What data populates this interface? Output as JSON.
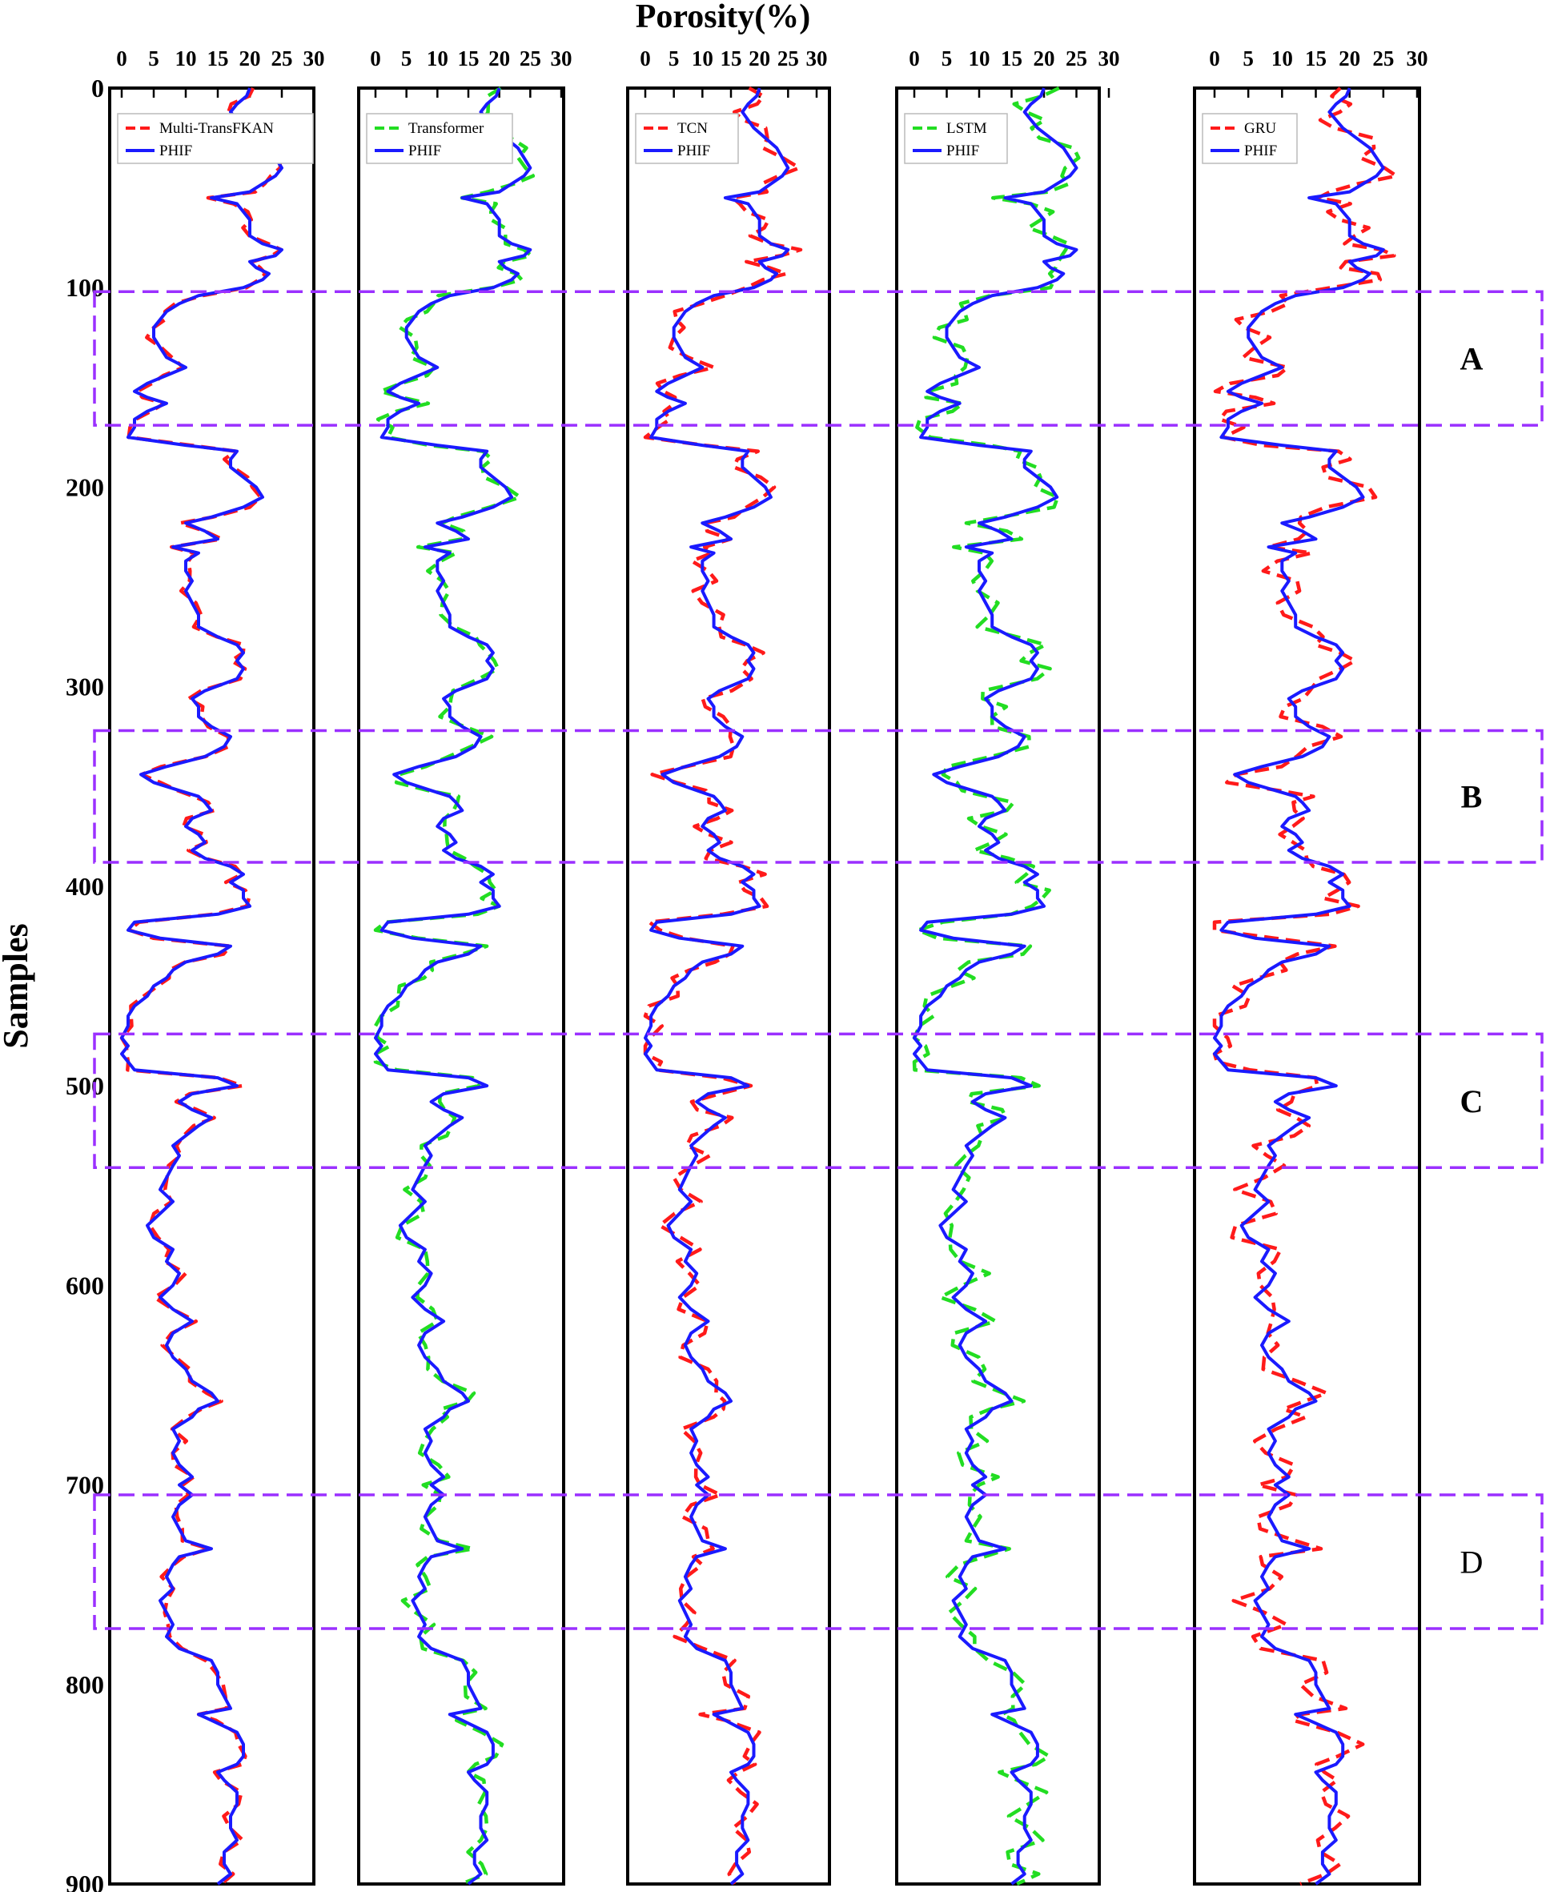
{
  "chart_data": {
    "type": "line",
    "title": "Porosity(%)",
    "ylabel": "Samples",
    "xlim": [
      0,
      30
    ],
    "ylim": [
      0,
      900
    ],
    "y_inverted": true,
    "x_ticks": [
      "0",
      "5",
      "10",
      "15",
      "20",
      "25",
      "30"
    ],
    "y_ticks": [
      "0",
      "100",
      "200",
      "300",
      "400",
      "500",
      "600",
      "700",
      "800",
      "900"
    ],
    "grid": false,
    "colors": {
      "reference": "#1a1aff",
      "red_prediction": "#ff1a1a",
      "green_prediction": "#22dd22",
      "zone_box": "#9b30ff"
    },
    "zones": [
      {
        "label": "A",
        "y_range": [
          102,
          169
        ],
        "bold": true
      },
      {
        "label": "B",
        "y_range": [
          322,
          388
        ],
        "bold": true
      },
      {
        "label": "C",
        "y_range": [
          474,
          541
        ],
        "bold": true
      },
      {
        "label": "D",
        "y_range": [
          705,
          772
        ],
        "bold": false
      }
    ],
    "reference_series": {
      "name": "PHIF",
      "points": [
        [
          0,
          20
        ],
        [
          4,
          19.5
        ],
        [
          8,
          18
        ],
        [
          12,
          17
        ],
        [
          16,
          18
        ],
        [
          20,
          19
        ],
        [
          25,
          21
        ],
        [
          30,
          23
        ],
        [
          35,
          24
        ],
        [
          40,
          25
        ],
        [
          44,
          24
        ],
        [
          48,
          22
        ],
        [
          52,
          20
        ],
        [
          55,
          14
        ],
        [
          58,
          18
        ],
        [
          62,
          19
        ],
        [
          66,
          20
        ],
        [
          70,
          20
        ],
        [
          74,
          20
        ],
        [
          78,
          22
        ],
        [
          81,
          25
        ],
        [
          84,
          24
        ],
        [
          87,
          20
        ],
        [
          90,
          21
        ],
        [
          93,
          23
        ],
        [
          96,
          22
        ],
        [
          100,
          19
        ],
        [
          104,
          12
        ],
        [
          108,
          9
        ],
        [
          112,
          7
        ],
        [
          116,
          6
        ],
        [
          120,
          5
        ],
        [
          125,
          5
        ],
        [
          130,
          6
        ],
        [
          135,
          7
        ],
        [
          140,
          10
        ],
        [
          144,
          7
        ],
        [
          148,
          4
        ],
        [
          152,
          2
        ],
        [
          155,
          4
        ],
        [
          158,
          7
        ],
        [
          162,
          4
        ],
        [
          166,
          2
        ],
        [
          170,
          2
        ],
        [
          175,
          1
        ],
        [
          179,
          10
        ],
        [
          182,
          18
        ],
        [
          186,
          17
        ],
        [
          190,
          17
        ],
        [
          195,
          19
        ],
        [
          200,
          21
        ],
        [
          205,
          22
        ],
        [
          210,
          19
        ],
        [
          215,
          14
        ],
        [
          218,
          10
        ],
        [
          222,
          13
        ],
        [
          226,
          15
        ],
        [
          230,
          8
        ],
        [
          233,
          12
        ],
        [
          237,
          10
        ],
        [
          242,
          10
        ],
        [
          247,
          11
        ],
        [
          252,
          10
        ],
        [
          258,
          11
        ],
        [
          264,
          12
        ],
        [
          270,
          12
        ],
        [
          275,
          15
        ],
        [
          279,
          18
        ],
        [
          283,
          19
        ],
        [
          287,
          18
        ],
        [
          291,
          19
        ],
        [
          296,
          18
        ],
        [
          302,
          13
        ],
        [
          306,
          11
        ],
        [
          310,
          12
        ],
        [
          315,
          12
        ],
        [
          320,
          14
        ],
        [
          325,
          17
        ],
        [
          330,
          16
        ],
        [
          335,
          13
        ],
        [
          340,
          7
        ],
        [
          344,
          3
        ],
        [
          348,
          5
        ],
        [
          352,
          9
        ],
        [
          355,
          12
        ],
        [
          358,
          13
        ],
        [
          362,
          14
        ],
        [
          366,
          11
        ],
        [
          370,
          10
        ],
        [
          374,
          12
        ],
        [
          378,
          13
        ],
        [
          382,
          11
        ],
        [
          386,
          13
        ],
        [
          390,
          17
        ],
        [
          394,
          19
        ],
        [
          398,
          17
        ],
        [
          402,
          19
        ],
        [
          406,
          19
        ],
        [
          410,
          20
        ],
        [
          414,
          15
        ],
        [
          418,
          2
        ],
        [
          422,
          1
        ],
        [
          426,
          6
        ],
        [
          430,
          17
        ],
        [
          434,
          15
        ],
        [
          438,
          10
        ],
        [
          442,
          8
        ],
        [
          446,
          7
        ],
        [
          450,
          5
        ],
        [
          455,
          4
        ],
        [
          460,
          2
        ],
        [
          465,
          1
        ],
        [
          470,
          1
        ],
        [
          476,
          0
        ],
        [
          480,
          1
        ],
        [
          484,
          0
        ],
        [
          488,
          1
        ],
        [
          492,
          2
        ],
        [
          496,
          15
        ],
        [
          500,
          18
        ],
        [
          504,
          11
        ],
        [
          508,
          9
        ],
        [
          512,
          11
        ],
        [
          516,
          14
        ],
        [
          520,
          12
        ],
        [
          525,
          10
        ],
        [
          530,
          8
        ],
        [
          535,
          9
        ],
        [
          540,
          8
        ],
        [
          546,
          7
        ],
        [
          552,
          6
        ],
        [
          558,
          8
        ],
        [
          564,
          6
        ],
        [
          570,
          4
        ],
        [
          576,
          5
        ],
        [
          582,
          8
        ],
        [
          588,
          7
        ],
        [
          594,
          9
        ],
        [
          600,
          8
        ],
        [
          606,
          6
        ],
        [
          612,
          8
        ],
        [
          618,
          11
        ],
        [
          624,
          8
        ],
        [
          630,
          7
        ],
        [
          636,
          8
        ],
        [
          642,
          10
        ],
        [
          648,
          11
        ],
        [
          654,
          14
        ],
        [
          658,
          15
        ],
        [
          662,
          12
        ],
        [
          666,
          11
        ],
        [
          672,
          8
        ],
        [
          678,
          9
        ],
        [
          684,
          8
        ],
        [
          690,
          9
        ],
        [
          696,
          11
        ],
        [
          700,
          9
        ],
        [
          705,
          11
        ],
        [
          710,
          9
        ],
        [
          716,
          8
        ],
        [
          722,
          9
        ],
        [
          728,
          10
        ],
        [
          732,
          14
        ],
        [
          736,
          9
        ],
        [
          740,
          8
        ],
        [
          746,
          7
        ],
        [
          752,
          8
        ],
        [
          758,
          6
        ],
        [
          764,
          7
        ],
        [
          770,
          8
        ],
        [
          776,
          7
        ],
        [
          782,
          9
        ],
        [
          788,
          14
        ],
        [
          794,
          15
        ],
        [
          800,
          15
        ],
        [
          806,
          16
        ],
        [
          812,
          17
        ],
        [
          815,
          12
        ],
        [
          818,
          14
        ],
        [
          824,
          18
        ],
        [
          830,
          19
        ],
        [
          836,
          19
        ],
        [
          840,
          18
        ],
        [
          844,
          15
        ],
        [
          848,
          16
        ],
        [
          854,
          18
        ],
        [
          860,
          18
        ],
        [
          866,
          17
        ],
        [
          872,
          17
        ],
        [
          878,
          18
        ],
        [
          884,
          16
        ],
        [
          890,
          16
        ],
        [
          895,
          17
        ],
        [
          900,
          15
        ]
      ]
    },
    "panels": [
      {
        "prediction_name": "Multi-TransFKAN",
        "prediction_color": "#ff1a1a",
        "reference_name": "PHIF",
        "offsets": [
          0.8,
          0.6,
          1.1,
          0.7,
          0.9
        ]
      },
      {
        "prediction_name": "Transformer",
        "prediction_color": "#22dd22",
        "reference_name": "PHIF",
        "offsets": [
          1.6,
          1.4,
          1.9,
          1.2,
          1.5
        ]
      },
      {
        "prediction_name": "TCN",
        "prediction_color": "#ff1a1a",
        "reference_name": "PHIF",
        "offsets": [
          2.2,
          1.8,
          2.4,
          1.7,
          2.0
        ]
      },
      {
        "prediction_name": "LSTM",
        "prediction_color": "#22dd22",
        "reference_name": "PHIF",
        "offsets": [
          2.4,
          2.0,
          2.6,
          1.9,
          2.2
        ]
      },
      {
        "prediction_name": "GRU",
        "prediction_color": "#ff1a1a",
        "reference_name": "PHIF",
        "offsets": [
          3.0,
          2.6,
          3.2,
          2.4,
          2.8
        ]
      }
    ]
  }
}
